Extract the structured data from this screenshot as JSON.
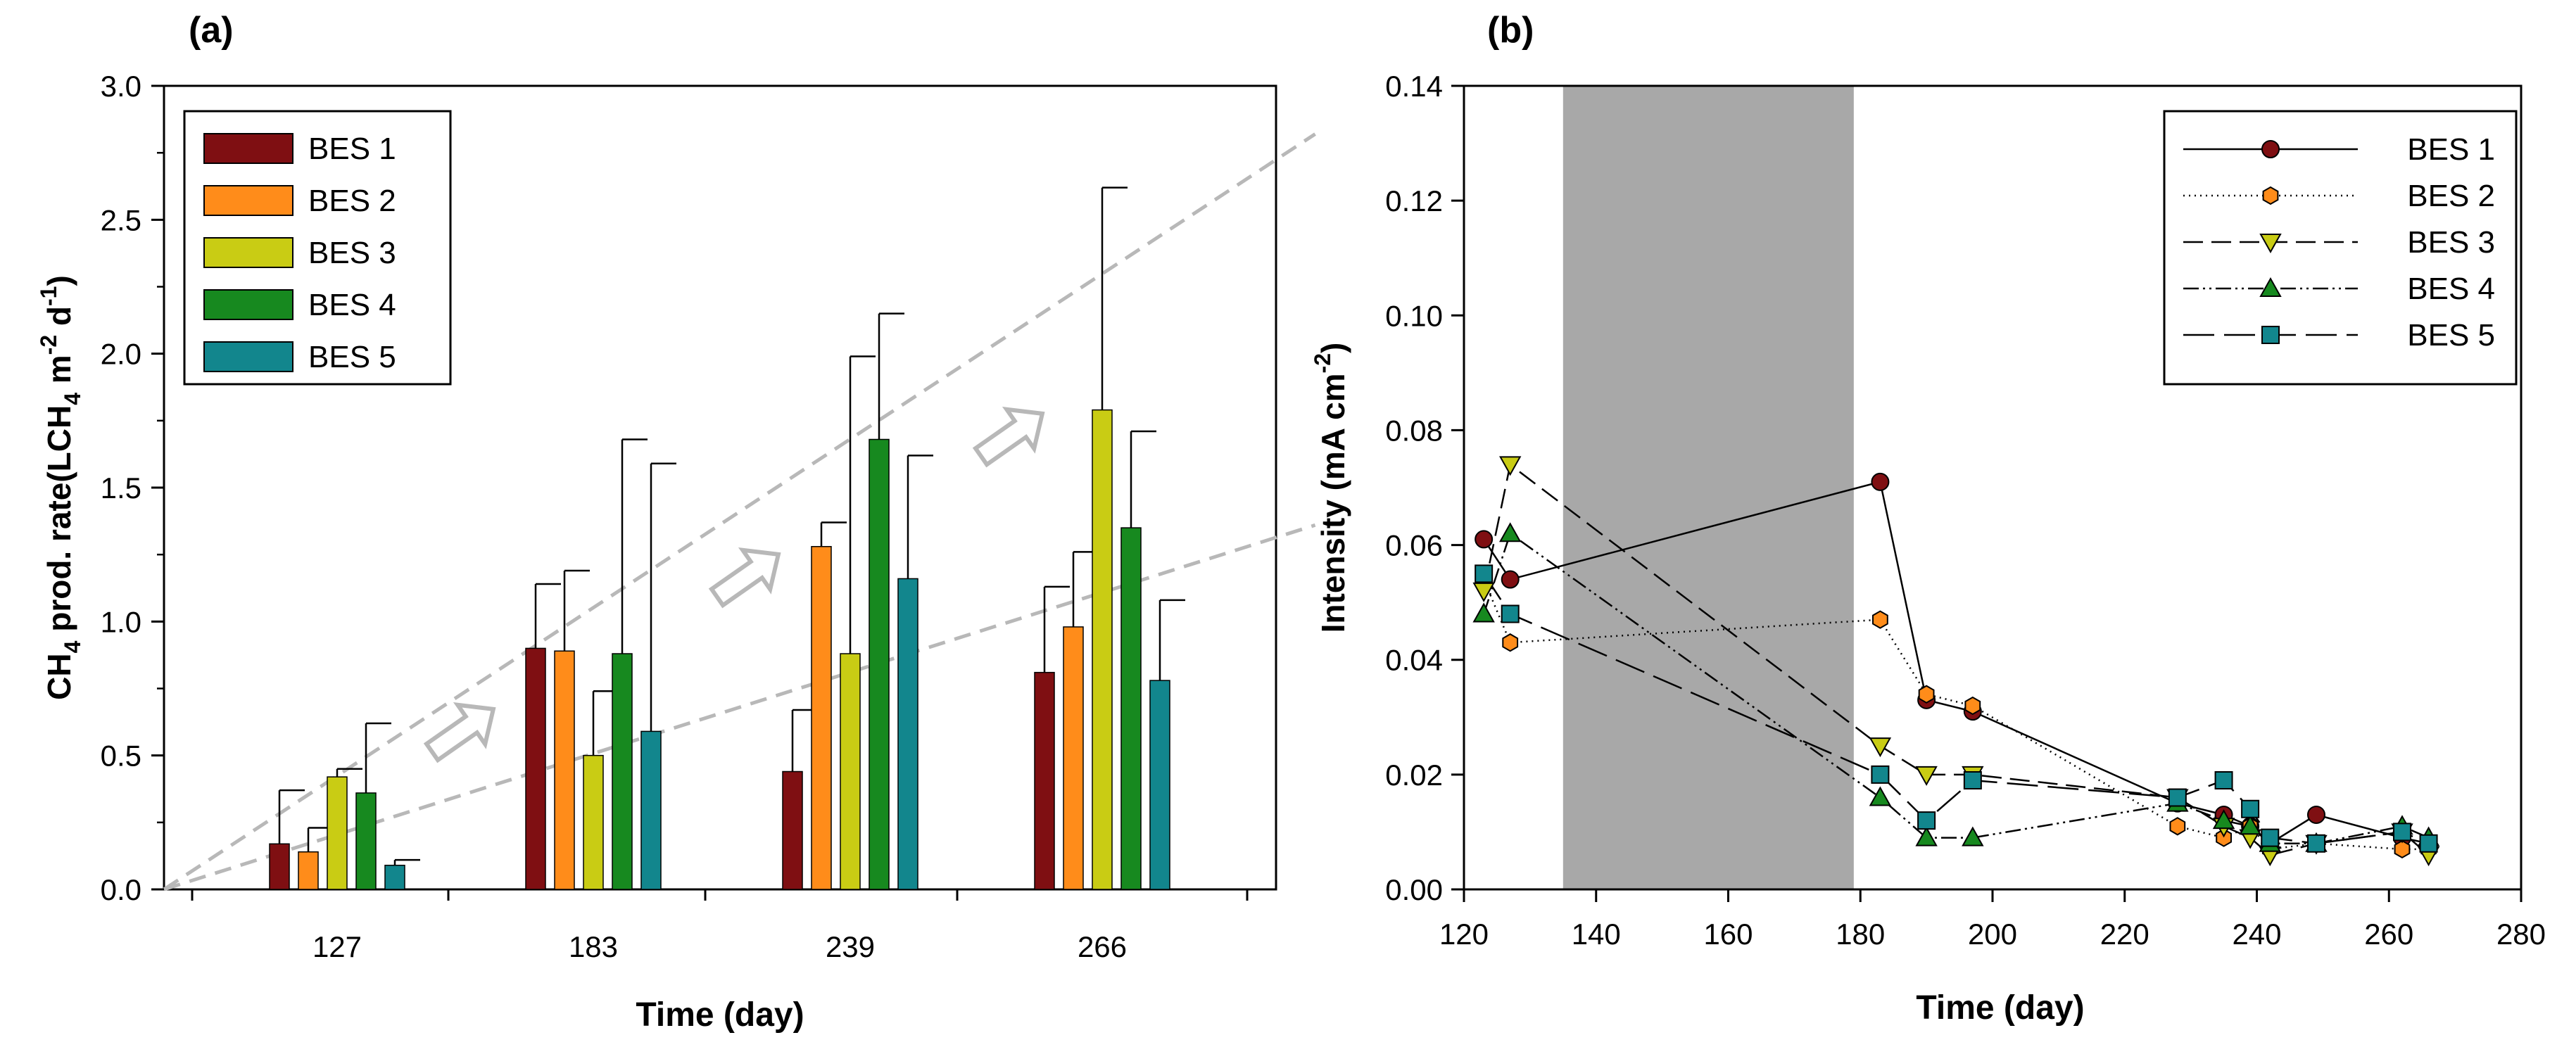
{
  "colors": {
    "BES 1": "#7f0f12",
    "BES 2": "#ff8c1a",
    "BES 3": "#c9cc14",
    "BES 4": "#17891f",
    "BES 5": "#12868d",
    "trend": "#b8b8b8",
    "shade": "#a8a8a8"
  },
  "chart_data": [
    {
      "type": "bar",
      "panel_label": "(a)",
      "title": "",
      "xlabel": "Time (day)",
      "ylabel": {
        "a": "CH",
        "b": "4",
        "c": " prod. rate(LCH",
        "d": "4",
        "e": " m",
        "f": "-2",
        "g": " d",
        "h": "-1",
        "i": ")"
      },
      "categories": [
        "127",
        "183",
        "239",
        "266"
      ],
      "ylim": [
        0,
        3.0
      ],
      "yticks": [
        "0.0",
        "0.5",
        "1.0",
        "1.5",
        "2.0",
        "2.5",
        "3.0"
      ],
      "legend_position": "top-left",
      "series": [
        {
          "name": "BES 1",
          "values": [
            0.17,
            0.9,
            0.44,
            0.81
          ],
          "errors": [
            0.2,
            0.24,
            0.23,
            0.32
          ]
        },
        {
          "name": "BES 2",
          "values": [
            0.14,
            0.89,
            1.28,
            0.98
          ],
          "errors": [
            0.09,
            0.3,
            0.09,
            0.28
          ]
        },
        {
          "name": "BES 3",
          "values": [
            0.42,
            0.5,
            0.88,
            1.79
          ],
          "errors": [
            0.03,
            0.24,
            1.11,
            0.83
          ]
        },
        {
          "name": "BES 4",
          "values": [
            0.36,
            0.88,
            1.68,
            1.35
          ],
          "errors": [
            0.26,
            0.8,
            0.47,
            0.36
          ]
        },
        {
          "name": "BES 5",
          "values": [
            0.09,
            0.59,
            1.16,
            0.78
          ],
          "errors": [
            0.02,
            1.0,
            0.46,
            0.3
          ]
        }
      ],
      "trend_lines": [
        {
          "from": [
            0,
            0
          ],
          "to": [
            4.6,
            2.82
          ]
        },
        {
          "from": [
            0,
            0
          ],
          "to": [
            4.6,
            1.36
          ]
        }
      ],
      "arrows": "upward-right hollow arrows between groups"
    },
    {
      "type": "line",
      "panel_label": "(b)",
      "title": "",
      "xlabel": "Time (day)",
      "ylabel": {
        "a": "Intensity (mA cm",
        "b": "-2",
        "c": ")"
      },
      "xlim": [
        120,
        280
      ],
      "ylim": [
        0,
        0.14
      ],
      "xticks": [
        "120",
        "140",
        "160",
        "180",
        "200",
        "220",
        "240",
        "260",
        "280"
      ],
      "yticks": [
        "0.00",
        "0.02",
        "0.04",
        "0.06",
        "0.08",
        "0.10",
        "0.12",
        "0.14"
      ],
      "shaded_region": [
        135,
        179
      ],
      "legend_position": "top-right",
      "series": [
        {
          "name": "BES 1",
          "marker": "circle",
          "dash": "",
          "x": [
            123,
            127,
            183,
            190,
            197,
            228,
            235,
            239,
            242,
            249,
            262,
            266
          ],
          "y": [
            0.061,
            0.054,
            0.071,
            0.033,
            0.031,
            0.015,
            0.013,
            0.011,
            0.008,
            0.013,
            0.009,
            0.008
          ]
        },
        {
          "name": "BES 2",
          "marker": "hexagon",
          "dash": "2,6",
          "x": [
            123,
            127,
            183,
            190,
            197,
            228,
            235,
            239,
            242,
            249,
            262,
            266
          ],
          "y": [
            0.054,
            0.043,
            0.047,
            0.034,
            0.032,
            0.011,
            0.009,
            0.011,
            0.007,
            0.008,
            0.007,
            0.007
          ]
        },
        {
          "name": "BES 3",
          "marker": "triangle-down",
          "dash": "28,12",
          "x": [
            123,
            127,
            183,
            190,
            197,
            228,
            235,
            239,
            242,
            249,
            262,
            266
          ],
          "y": [
            0.052,
            0.074,
            0.025,
            0.02,
            0.02,
            0.016,
            0.011,
            0.009,
            0.006,
            0.008,
            0.01,
            0.006
          ]
        },
        {
          "name": "BES 4",
          "marker": "triangle-up",
          "dash": "22,6,3,6,3,6",
          "x": [
            123,
            127,
            183,
            190,
            197,
            228,
            235,
            239,
            242,
            249,
            262,
            266
          ],
          "y": [
            0.048,
            0.062,
            0.016,
            0.009,
            0.009,
            0.015,
            0.012,
            0.011,
            0.008,
            0.008,
            0.011,
            0.009
          ]
        },
        {
          "name": "BES 5",
          "marker": "square",
          "dash": "44,14",
          "x": [
            123,
            127,
            183,
            190,
            197,
            228,
            235,
            239,
            242,
            249,
            262,
            266
          ],
          "y": [
            0.055,
            0.048,
            0.02,
            0.012,
            0.019,
            0.016,
            0.019,
            0.014,
            0.009,
            0.008,
            0.01,
            0.008
          ]
        }
      ]
    }
  ]
}
